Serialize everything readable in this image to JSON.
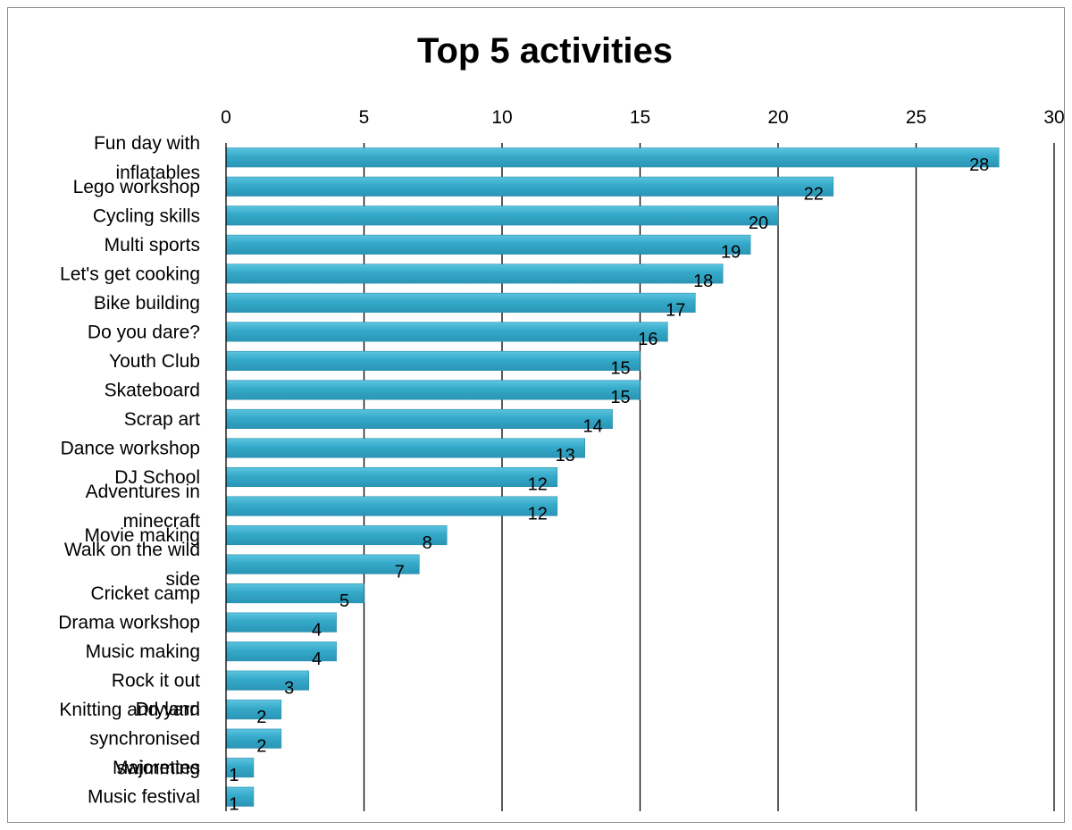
{
  "chart_data": {
    "type": "bar",
    "orientation": "horizontal",
    "title": "Top 5 activities",
    "xlim": [
      0,
      30
    ],
    "x_ticks": [
      0,
      5,
      10,
      15,
      20,
      25,
      30
    ],
    "x_axis_position": "top",
    "grid": true,
    "legend": "none",
    "bar_color": "#2ea3c4",
    "bar_color_light": "#5cc4df",
    "categories": [
      [
        "Fun day with",
        "inflatables"
      ],
      [
        "Lego workshop"
      ],
      [
        "Cycling skills"
      ],
      [
        "Multi sports"
      ],
      [
        "Let's get cooking"
      ],
      [
        "Bike building"
      ],
      [
        "Do you dare?"
      ],
      [
        "Youth Club"
      ],
      [
        "Skateboard"
      ],
      [
        "Scrap art"
      ],
      [
        "Dance workshop"
      ],
      [
        "DJ School"
      ],
      [
        "Adventures in",
        "minecraft"
      ],
      [
        "Movie making"
      ],
      [
        "Walk on the wild",
        "side"
      ],
      [
        "Cricket camp"
      ],
      [
        "Drama workshop"
      ],
      [
        "Music making"
      ],
      [
        "Rock it out"
      ],
      [
        "Knitting and yarn"
      ],
      [
        "Dryland",
        "synchronised",
        "swimming"
      ],
      [
        "Majorettes"
      ],
      [
        "Music festival"
      ]
    ],
    "values": [
      28,
      22,
      20,
      19,
      18,
      17,
      16,
      15,
      15,
      14,
      13,
      12,
      12,
      8,
      7,
      5,
      4,
      4,
      3,
      2,
      2,
      1,
      1
    ]
  }
}
